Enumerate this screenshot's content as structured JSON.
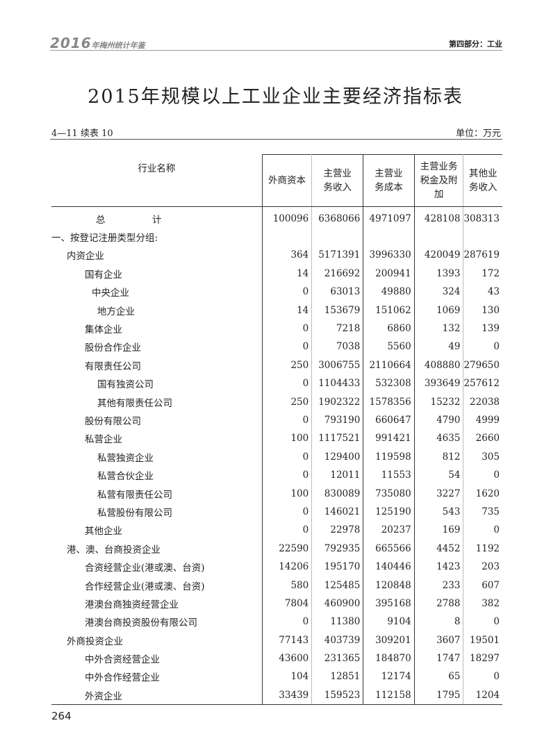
{
  "running_header": {
    "year": "2016",
    "book": "年梅州统计年鉴",
    "section": "第四部分：工业"
  },
  "title": "2015年规模以上工业企业主要经济指标表",
  "table_number": "4—11 续表 10",
  "unit": "单位：万元",
  "columns": [
    "行业名称",
    "外商资本",
    "主营业务收入",
    "主营业务成本",
    "主营业务税金及附加",
    "其他业务收入"
  ],
  "column_lines": [
    [
      "行业名称"
    ],
    [
      "外商资本"
    ],
    [
      "主营业",
      "务收入"
    ],
    [
      "主营业",
      "务成本"
    ],
    [
      "主营业务",
      "税金及附",
      "加"
    ],
    [
      "其他业",
      "务收入"
    ]
  ],
  "rows": [
    {
      "name": "总　　　　　计",
      "level": "total",
      "values": [
        "100096",
        "6368066",
        "4971097",
        "428108",
        "308313"
      ]
    },
    {
      "name": "一、按登记注册类型分组:",
      "level": 0,
      "values": [
        "",
        "",
        "",
        "",
        ""
      ]
    },
    {
      "name": "内资企业",
      "level": 1,
      "values": [
        "364",
        "5171391",
        "3996330",
        "420049",
        "287619"
      ]
    },
    {
      "name": "国有企业",
      "level": 2,
      "values": [
        "14",
        "216692",
        "200941",
        "1393",
        "172"
      ]
    },
    {
      "name": "中央企业",
      "level": 3,
      "values": [
        "0",
        "63013",
        "49880",
        "324",
        "43"
      ]
    },
    {
      "name": "地方企业",
      "level": 4,
      "values": [
        "14",
        "153679",
        "151062",
        "1069",
        "130"
      ]
    },
    {
      "name": "集体企业",
      "level": 2,
      "values": [
        "0",
        "7218",
        "6860",
        "132",
        "139"
      ]
    },
    {
      "name": "股份合作企业",
      "level": 2,
      "values": [
        "0",
        "7038",
        "5560",
        "49",
        "0"
      ]
    },
    {
      "name": "有限责任公司",
      "level": 2,
      "values": [
        "250",
        "3006755",
        "2110664",
        "408880",
        "279650"
      ]
    },
    {
      "name": "国有独资公司",
      "level": 4,
      "values": [
        "0",
        "1104433",
        "532308",
        "393649",
        "257612"
      ]
    },
    {
      "name": "其他有限责任公司",
      "level": 4,
      "values": [
        "250",
        "1902322",
        "1578356",
        "15232",
        "22038"
      ]
    },
    {
      "name": "股份有限公司",
      "level": 2,
      "values": [
        "0",
        "793190",
        "660647",
        "4790",
        "4999"
      ]
    },
    {
      "name": "私营企业",
      "level": 2,
      "values": [
        "100",
        "1117521",
        "991421",
        "4635",
        "2660"
      ]
    },
    {
      "name": "私营独资企业",
      "level": 4,
      "values": [
        "0",
        "129400",
        "119598",
        "812",
        "305"
      ]
    },
    {
      "name": "私营合伙企业",
      "level": 4,
      "values": [
        "0",
        "12011",
        "11553",
        "54",
        "0"
      ]
    },
    {
      "name": "私营有限责任公司",
      "level": 4,
      "values": [
        "100",
        "830089",
        "735080",
        "3227",
        "1620"
      ]
    },
    {
      "name": "私营股份有限公司",
      "level": 4,
      "values": [
        "0",
        "146021",
        "125190",
        "543",
        "735"
      ]
    },
    {
      "name": "其他企业",
      "level": 2,
      "values": [
        "0",
        "22978",
        "20237",
        "169",
        "0"
      ]
    },
    {
      "name": "港、澳、台商投资企业",
      "level": 1,
      "values": [
        "22590",
        "792935",
        "665566",
        "4452",
        "1192"
      ]
    },
    {
      "name": "合资经营企业(港或澳、台资)",
      "level": 2,
      "values": [
        "14206",
        "195170",
        "140446",
        "1423",
        "203"
      ]
    },
    {
      "name": "合作经营企业(港或澳、台资)",
      "level": 2,
      "values": [
        "580",
        "125485",
        "120848",
        "233",
        "607"
      ]
    },
    {
      "name": "港澳台商独资经营企业",
      "level": 2,
      "values": [
        "7804",
        "460900",
        "395168",
        "2788",
        "382"
      ]
    },
    {
      "name": "港澳台商投资股份有限公司",
      "level": 2,
      "values": [
        "0",
        "11380",
        "9104",
        "8",
        "0"
      ]
    },
    {
      "name": "外商投资企业",
      "level": 1,
      "values": [
        "77143",
        "403739",
        "309201",
        "3607",
        "19501"
      ]
    },
    {
      "name": "中外合资经营企业",
      "level": 2,
      "values": [
        "43600",
        "231365",
        "184870",
        "1747",
        "18297"
      ]
    },
    {
      "name": "中外合作经营企业",
      "level": 2,
      "values": [
        "104",
        "12851",
        "12174",
        "65",
        "0"
      ]
    },
    {
      "name": "外资企业",
      "level": 2,
      "values": [
        "33439",
        "159523",
        "112158",
        "1795",
        "1204"
      ]
    }
  ],
  "page_number": "264"
}
